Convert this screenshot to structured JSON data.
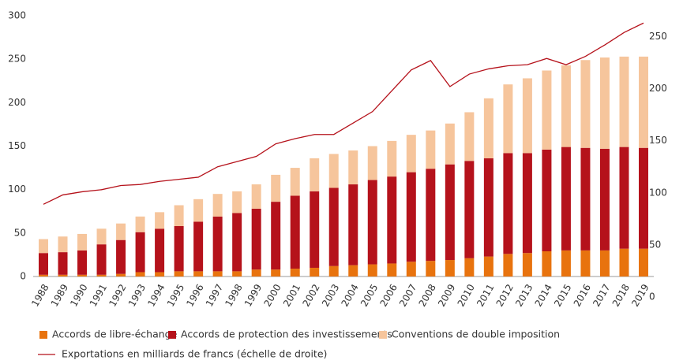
{
  "chart_data": {
    "type": "bar",
    "stacked": true,
    "categories": [
      "1988",
      "1989",
      "1990",
      "1991",
      "1992",
      "1993",
      "1994",
      "1995",
      "1996",
      "1997",
      "1998",
      "1999",
      "2000",
      "2001",
      "2002",
      "2003",
      "2004",
      "2005",
      "2006",
      "2007",
      "2008",
      "2009",
      "2010",
      "2011",
      "2012",
      "2013",
      "2014",
      "2015",
      "2016",
      "2017",
      "2018",
      "2019"
    ],
    "ylim": [
      0,
      300
    ],
    "yticks": [
      0,
      50,
      100,
      150,
      200,
      250,
      300
    ],
    "y2lim": [
      0,
      270
    ],
    "y2ticks": [
      0,
      50,
      100,
      150,
      200,
      250
    ],
    "series": [
      {
        "name": "Accords de libre-échange",
        "type": "bar",
        "color": "#e8730e",
        "values": [
          2,
          2,
          2,
          2,
          3,
          5,
          5,
          6,
          6,
          6,
          6,
          8,
          8,
          9,
          10,
          12,
          13,
          14,
          15,
          17,
          18,
          19,
          21,
          23,
          26,
          27,
          29,
          30,
          30,
          30,
          32,
          32
        ]
      },
      {
        "name": "Accords de protection des investissements",
        "type": "bar",
        "color": "#b5121b",
        "values": [
          25,
          26,
          28,
          35,
          39,
          46,
          50,
          52,
          57,
          63,
          67,
          70,
          78,
          84,
          88,
          90,
          93,
          97,
          100,
          103,
          106,
          110,
          112,
          113,
          116,
          115,
          117,
          119,
          118,
          117,
          117,
          116
        ]
      },
      {
        "name": "Conventions de double imposition",
        "type": "bar",
        "color": "#f6c59c",
        "values": [
          16,
          18,
          19,
          18,
          19,
          18,
          19,
          24,
          26,
          26,
          25,
          28,
          31,
          32,
          38,
          39,
          39,
          39,
          41,
          43,
          44,
          47,
          56,
          69,
          79,
          86,
          91,
          94,
          101,
          105,
          104,
          105
        ]
      },
      {
        "name": "Exportations en milliards de francs (échelle de droite)",
        "type": "line",
        "axis": "y2",
        "color": "#b5121b",
        "values": [
          89,
          98,
          101,
          103,
          107,
          108,
          111,
          113,
          115,
          125,
          130,
          135,
          147,
          152,
          156,
          156,
          167,
          178,
          198,
          218,
          227,
          202,
          214,
          219,
          222,
          223,
          229,
          223,
          231,
          242,
          254,
          263
        ]
      }
    ]
  }
}
